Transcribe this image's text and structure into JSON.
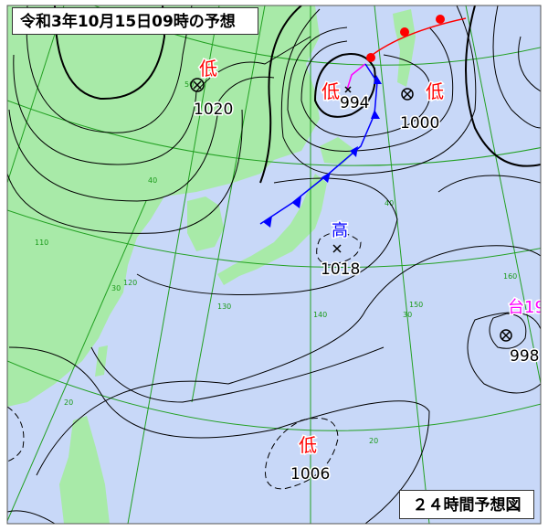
{
  "header": {
    "title": "令和3年10月15日09時の予想"
  },
  "footer": {
    "chart_type": "２４時間予想図"
  },
  "colors": {
    "sea": "#c8d8f8",
    "land": "#a8eaa8",
    "grid": "#22a022",
    "isobar": "#000000",
    "warm_front": "#ff0000",
    "cold_front": "#0000ff",
    "occluded_front": "#ff00ff",
    "low_label": "#ff0000",
    "high_label": "#0000ff",
    "typhoon_label": "#ff00ff"
  },
  "systems": {
    "low_north_china": {
      "label": "低",
      "pressure": "1020"
    },
    "low_hokkaido_west": {
      "label": "低",
      "pressure": "994"
    },
    "low_kuril": {
      "label": "低",
      "pressure": "1000"
    },
    "high_japan": {
      "label": "高",
      "pressure": "1018"
    },
    "typhoon": {
      "label": "台19",
      "pressure": "998"
    },
    "low_south": {
      "label": "低",
      "pressure": "1006"
    }
  },
  "grid_labels": {
    "lat": [
      "50",
      "40",
      "30",
      "20",
      "20"
    ],
    "lon": [
      "110",
      "120",
      "130",
      "140",
      "150",
      "150",
      "160"
    ],
    "lat_extra": [
      "40",
      "30"
    ]
  }
}
